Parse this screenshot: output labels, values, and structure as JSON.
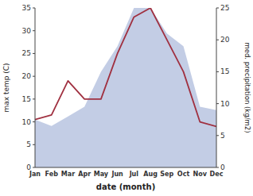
{
  "chart_data": {
    "type": "line",
    "xlabel": "date (month)",
    "ylabel": "max temp (C)",
    "y2label": "med. precipitation (kg/m2)",
    "categories": [
      "Jan",
      "Feb",
      "Mar",
      "Apr",
      "May",
      "Jun",
      "Jul",
      "Aug",
      "Sep",
      "Oct",
      "Nov",
      "Dec"
    ],
    "series": [
      {
        "type": "area",
        "axis": "y2",
        "color": "#b8c4e0",
        "values": [
          7.5,
          6.5,
          8.0,
          9.5,
          15.0,
          19.0,
          25.0,
          25.0,
          21.0,
          19.0,
          9.5,
          9.0
        ]
      },
      {
        "type": "line",
        "color": "#a03040",
        "values": [
          10.5,
          11.5,
          19.0,
          15.0,
          15.0,
          25.0,
          33.0,
          35.0,
          28.0,
          21.0,
          10.0,
          9.0
        ]
      }
    ],
    "ylim": [
      0,
      35
    ],
    "yticks": [
      0,
      5,
      10,
      15,
      20,
      25,
      30,
      35
    ],
    "y2lim": [
      0,
      25
    ],
    "y2ticks": [
      0,
      5,
      10,
      15,
      20,
      25
    ]
  }
}
